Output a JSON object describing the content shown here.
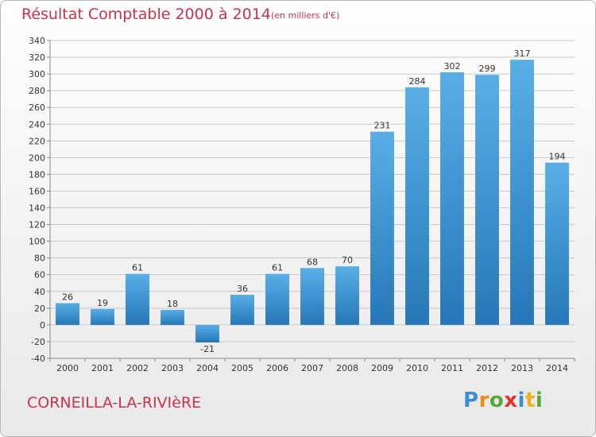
{
  "header": {
    "title": "Résultat Comptable 2000 à 2014",
    "unit": "(en milliers d'€)"
  },
  "footer": {
    "commune": "CORNEILLA-LA-RIVIèRE",
    "logo_letters": [
      {
        "char": "P",
        "color": "#3b8fd0"
      },
      {
        "char": "r",
        "color": "#f08a1c"
      },
      {
        "char": "o",
        "color": "#5aa83a"
      },
      {
        "char": "x",
        "color": "#e2342a"
      },
      {
        "char": "i",
        "color": "#3b8fd0"
      },
      {
        "char": "t",
        "color": "#f0b21c"
      },
      {
        "char": "i",
        "color": "#5aa83a"
      }
    ]
  },
  "colors": {
    "bar_light": "#5aaee6",
    "bar_dark": "#2777b8",
    "grid": "#c9c9c9",
    "title": "#c8344c"
  },
  "chart_data": {
    "type": "bar",
    "categories": [
      "2000",
      "2001",
      "2002",
      "2003",
      "2004",
      "2005",
      "2006",
      "2007",
      "2008",
      "2009",
      "2010",
      "2011",
      "2012",
      "2013",
      "2014"
    ],
    "values": [
      26,
      19,
      61,
      18,
      -21,
      36,
      61,
      68,
      70,
      231,
      284,
      302,
      299,
      317,
      194
    ],
    "title": "Résultat Comptable 2000 à 2014",
    "xlabel": "",
    "ylabel": "",
    "ylim": [
      -40,
      340
    ],
    "yticks": [
      -40,
      -20,
      0,
      20,
      40,
      60,
      80,
      100,
      120,
      140,
      160,
      180,
      200,
      220,
      240,
      260,
      280,
      300,
      320,
      340
    ],
    "grid": true,
    "data_labels": true
  }
}
